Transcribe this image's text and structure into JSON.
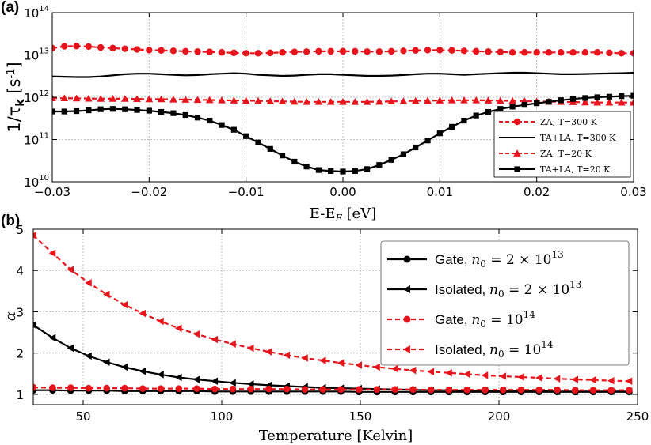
{
  "chart_data": [
    {
      "panel_label": "(a)",
      "type": "line",
      "xlabel": "E-E",
      "xlabel_sub": "F",
      "xlabel_unit": " [eV]",
      "ylabel": "1/τ",
      "ylabel_sub": "k",
      "ylabel_unit": " [s",
      "ylabel_sup": "-1",
      "ylabel_close": "]",
      "yscale": "log",
      "xlim": [
        -0.03,
        0.03
      ],
      "ylim": [
        10000000000.0,
        100000000000000.0
      ],
      "xticks": [
        "−0.03",
        "−0.02",
        "−0.01",
        "0.00",
        "0.01",
        "0.02",
        "0.03"
      ],
      "xtick_values": [
        -0.03,
        -0.02,
        -0.01,
        0.0,
        0.01,
        0.02,
        0.03
      ],
      "yticks": [
        {
          "base": "10",
          "exp": "10",
          "value": 10000000000.0
        },
        {
          "base": "10",
          "exp": "11",
          "value": 100000000000.0
        },
        {
          "base": "10",
          "exp": "12",
          "value": 1000000000000.0
        },
        {
          "base": "10",
          "exp": "13",
          "value": 10000000000000.0
        },
        {
          "base": "10",
          "exp": "14",
          "value": 100000000000000.0
        }
      ],
      "grid": true,
      "legend_position": "bottom-right",
      "x": [
        -0.03,
        -0.02875,
        -0.0275,
        -0.02625,
        -0.025,
        -0.02375,
        -0.0225,
        -0.02125,
        -0.02,
        -0.01875,
        -0.0175,
        -0.01625,
        -0.015,
        -0.01375,
        -0.0125,
        -0.01125,
        -0.01,
        -0.00875,
        -0.0075,
        -0.00625,
        -0.005,
        -0.00375,
        -0.0025,
        -0.00125,
        0.0,
        0.00125,
        0.0025,
        0.00375,
        0.005,
        0.00625,
        0.0075,
        0.00875,
        0.01,
        0.01125,
        0.0125,
        0.01375,
        0.015,
        0.01625,
        0.0175,
        0.01875,
        0.02,
        0.02125,
        0.0225,
        0.02375,
        0.025,
        0.02625,
        0.0275,
        0.02875,
        0.03
      ],
      "series": [
        {
          "name": "ZA, T=300 K",
          "color": "#e8141c",
          "linestyle": "dashed",
          "marker": "circle",
          "values": [
            14500000000000.0,
            16000000000000.0,
            16200000000000.0,
            15800000000000.0,
            15000000000000.0,
            14500000000000.0,
            14000000000000.0,
            13500000000000.0,
            13000000000000.0,
            12800000000000.0,
            12500000000000.0,
            12200000000000.0,
            12000000000000.0,
            11800000000000.0,
            11500000000000.0,
            11200000000000.0,
            11000000000000.0,
            11000000000000.0,
            11200000000000.0,
            11500000000000.0,
            11800000000000.0,
            12000000000000.0,
            12200000000000.0,
            12200000000000.0,
            12200000000000.0,
            12200000000000.0,
            12000000000000.0,
            12000000000000.0,
            12200000000000.0,
            12500000000000.0,
            12800000000000.0,
            13000000000000.0,
            13000000000000.0,
            12800000000000.0,
            12500000000000.0,
            12200000000000.0,
            12000000000000.0,
            11800000000000.0,
            11500000000000.0,
            11500000000000.0,
            11500000000000.0,
            11500000000000.0,
            11500000000000.0,
            11500000000000.0,
            11500000000000.0,
            11500000000000.0,
            11200000000000.0,
            11000000000000.0,
            11000000000000.0
          ]
        },
        {
          "name": "TA+LA, T=300 K",
          "color": "#000000",
          "linestyle": "solid",
          "marker": "none",
          "values": [
            3100000000000.0,
            3050000000000.0,
            3000000000000.0,
            3000000000000.0,
            3100000000000.0,
            3300000000000.0,
            3500000000000.0,
            3600000000000.0,
            3600000000000.0,
            3500000000000.0,
            3400000000000.0,
            3300000000000.0,
            3350000000000.0,
            3500000000000.0,
            3600000000000.0,
            3700000000000.0,
            3600000000000.0,
            3400000000000.0,
            3300000000000.0,
            3200000000000.0,
            3250000000000.0,
            3400000000000.0,
            3500000000000.0,
            3500000000000.0,
            3400000000000.0,
            3300000000000.0,
            3200000000000.0,
            3200000000000.0,
            3250000000000.0,
            3350000000000.0,
            3500000000000.0,
            3600000000000.0,
            3600000000000.0,
            3500000000000.0,
            3400000000000.0,
            3500000000000.0,
            3600000000000.0,
            3700000000000.0,
            3800000000000.0,
            3800000000000.0,
            3700000000000.0,
            3600000000000.0,
            3500000000000.0,
            3500000000000.0,
            3550000000000.0,
            3600000000000.0,
            3650000000000.0,
            3700000000000.0,
            3800000000000.0
          ]
        },
        {
          "name": "ZA, T=20 K",
          "color": "#e8141c",
          "linestyle": "dashed",
          "marker": "triangle",
          "values": [
            950000000000.0,
            950000000000.0,
            940000000000.0,
            930000000000.0,
            920000000000.0,
            920000000000.0,
            920000000000.0,
            910000000000.0,
            900000000000.0,
            900000000000.0,
            890000000000.0,
            880000000000.0,
            870000000000.0,
            860000000000.0,
            850000000000.0,
            840000000000.0,
            830000000000.0,
            820000000000.0,
            810000000000.0,
            800000000000.0,
            790000000000.0,
            780000000000.0,
            780000000000.0,
            780000000000.0,
            780000000000.0,
            780000000000.0,
            780000000000.0,
            790000000000.0,
            800000000000.0,
            810000000000.0,
            820000000000.0,
            830000000000.0,
            840000000000.0,
            850000000000.0,
            850000000000.0,
            850000000000.0,
            840000000000.0,
            830000000000.0,
            820000000000.0,
            810000000000.0,
            800000000000.0,
            790000000000.0,
            780000000000.0,
            770000000000.0,
            760000000000.0,
            750000000000.0,
            750000000000.0,
            750000000000.0,
            750000000000.0
          ]
        },
        {
          "name": "TA+LA, T=20 K",
          "color": "#000000",
          "linestyle": "solid",
          "marker": "square",
          "values": [
            460000000000.0,
            460000000000.0,
            470000000000.0,
            490000000000.0,
            520000000000.0,
            530000000000.0,
            520000000000.0,
            500000000000.0,
            480000000000.0,
            450000000000.0,
            420000000000.0,
            380000000000.0,
            330000000000.0,
            280000000000.0,
            220000000000.0,
            170000000000.0,
            120000000000.0,
            85000000000.0,
            60000000000.0,
            42000000000.0,
            30000000000.0,
            23000000000.0,
            19000000000.0,
            18000000000.0,
            17500000000.0,
            18000000000.0,
            20000000000.0,
            25000000000.0,
            33000000000.0,
            45000000000.0,
            65000000000.0,
            95000000000.0,
            140000000000.0,
            200000000000.0,
            280000000000.0,
            370000000000.0,
            450000000000.0,
            530000000000.0,
            600000000000.0,
            660000000000.0,
            720000000000.0,
            780000000000.0,
            850000000000.0,
            910000000000.0,
            960000000000.0,
            1000000000000.0,
            1030000000000.0,
            1060000000000.0,
            1080000000000.0
          ]
        }
      ]
    },
    {
      "panel_label": "(b)",
      "type": "line",
      "xlabel": "Temperature [Kelvin]",
      "ylabel": "α",
      "xlim": [
        32,
        250
      ],
      "ylim": [
        0.75,
        5
      ],
      "xticks": [
        "50",
        "100",
        "150",
        "200",
        "250"
      ],
      "xtick_values": [
        50,
        100,
        150,
        200,
        250
      ],
      "yticks": [
        "1",
        "2",
        "3",
        "4",
        "5"
      ],
      "ytick_values": [
        1,
        2,
        3,
        4,
        5
      ],
      "grid": true,
      "legend_position": "top-right",
      "x": [
        32,
        39,
        45.5,
        52,
        58.5,
        65,
        71.5,
        78,
        84.5,
        91,
        97.5,
        104,
        110.5,
        117,
        123.5,
        130,
        136.5,
        143,
        149.5,
        156,
        162.5,
        169,
        175.5,
        182,
        188.5,
        195,
        201.5,
        208,
        214.5,
        221,
        227.5,
        234,
        240.5,
        247
      ],
      "series": [
        {
          "name": "Gate, ",
          "math": "n",
          "sub": "0",
          "eq": " = 2 × 10",
          "sup": "13",
          "color": "#000000",
          "linestyle": "solid",
          "marker": "circle",
          "values": [
            1.1,
            1.1,
            1.09,
            1.09,
            1.09,
            1.08,
            1.08,
            1.08,
            1.08,
            1.08,
            1.07,
            1.07,
            1.07,
            1.07,
            1.07,
            1.07,
            1.07,
            1.07,
            1.06,
            1.06,
            1.06,
            1.06,
            1.06,
            1.06,
            1.06,
            1.06,
            1.06,
            1.06,
            1.06,
            1.06,
            1.06,
            1.06,
            1.06,
            1.06
          ]
        },
        {
          "name": "Isolated, ",
          "math": "n",
          "sub": "0",
          "eq": " = 2 × 10",
          "sup": "13",
          "color": "#000000",
          "linestyle": "solid",
          "marker": "triangle-left",
          "values": [
            2.68,
            2.37,
            2.12,
            1.93,
            1.78,
            1.66,
            1.56,
            1.48,
            1.41,
            1.36,
            1.32,
            1.28,
            1.25,
            1.22,
            1.2,
            1.18,
            1.16,
            1.15,
            1.14,
            1.13,
            1.12,
            1.11,
            1.1,
            1.1,
            1.09,
            1.09,
            1.08,
            1.08,
            1.08,
            1.07,
            1.07,
            1.07,
            1.07,
            1.07
          ]
        },
        {
          "name": "Gate, ",
          "math": "n",
          "sub": "0",
          "eq": " = 10",
          "sup": "14",
          "color": "#e8141c",
          "linestyle": "dashed",
          "marker": "circle",
          "values": [
            1.17,
            1.16,
            1.16,
            1.15,
            1.15,
            1.15,
            1.14,
            1.14,
            1.14,
            1.14,
            1.13,
            1.13,
            1.13,
            1.13,
            1.13,
            1.12,
            1.12,
            1.12,
            1.12,
            1.12,
            1.12,
            1.12,
            1.11,
            1.11,
            1.11,
            1.11,
            1.11,
            1.11,
            1.11,
            1.11,
            1.1,
            1.1,
            1.1,
            1.1
          ]
        },
        {
          "name": "Isolated, ",
          "math": "n",
          "sub": "0",
          "eq": " = 10",
          "sup": "14",
          "color": "#e8141c",
          "linestyle": "dashed",
          "marker": "triangle-left",
          "values": [
            4.85,
            4.42,
            4.02,
            3.7,
            3.42,
            3.17,
            2.96,
            2.77,
            2.6,
            2.46,
            2.33,
            2.22,
            2.12,
            2.03,
            1.95,
            1.88,
            1.82,
            1.76,
            1.71,
            1.66,
            1.62,
            1.58,
            1.55,
            1.52,
            1.49,
            1.46,
            1.44,
            1.42,
            1.4,
            1.38,
            1.36,
            1.35,
            1.33,
            1.32
          ]
        }
      ]
    }
  ]
}
